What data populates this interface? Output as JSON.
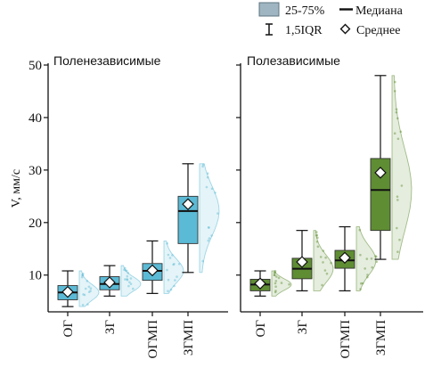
{
  "chart_data": {
    "type": "box",
    "ylabel": "V, мм/с",
    "ylim": [
      3,
      50
    ],
    "yticks": [
      10,
      20,
      30,
      40,
      50
    ],
    "categories": [
      "ОГ",
      "ЗГ",
      "ОГМП",
      "ЗГМП"
    ],
    "legend": {
      "box": "25-75%",
      "whisker": "1,5IQR",
      "median": "Медиана",
      "mean": "Среднее"
    },
    "colors": {
      "Поленезависимые": "#5bbad5",
      "Полезависимые": "#5f8d33"
    },
    "panels": [
      {
        "title": "Поленезависимые",
        "color": "#5bbad5",
        "groups": [
          {
            "category": "ОГ",
            "whisker_low": 4.0,
            "q1": 5.3,
            "median": 6.7,
            "q3": 8.0,
            "whisker_high": 10.8,
            "mean": 6.8
          },
          {
            "category": "ЗГ",
            "whisker_low": 6.0,
            "q1": 7.2,
            "median": 8.3,
            "q3": 9.7,
            "whisker_high": 11.8,
            "mean": 8.6
          },
          {
            "category": "ОГМП",
            "whisker_low": 6.5,
            "q1": 9.0,
            "median": 10.8,
            "q3": 12.2,
            "whisker_high": 16.5,
            "mean": 10.9
          },
          {
            "category": "ЗГМП",
            "whisker_low": 10.5,
            "q1": 16.0,
            "median": 22.2,
            "q3": 25.0,
            "whisker_high": 31.2,
            "mean": 23.5
          }
        ]
      },
      {
        "title": "Полезависимые",
        "color": "#5f8d33",
        "groups": [
          {
            "category": "ОГ",
            "whisker_low": 6.0,
            "q1": 7.0,
            "median": 8.2,
            "q3": 9.2,
            "whisker_high": 10.8,
            "mean": 8.4
          },
          {
            "category": "ЗГ",
            "whisker_low": 7.0,
            "q1": 9.3,
            "median": 11.2,
            "q3": 13.2,
            "whisker_high": 18.5,
            "mean": 12.5
          },
          {
            "category": "ОГМП",
            "whisker_low": 7.0,
            "q1": 11.3,
            "median": 12.8,
            "q3": 14.7,
            "whisker_high": 19.2,
            "mean": 13.3
          },
          {
            "category": "ЗГМП",
            "whisker_low": 13.0,
            "q1": 18.5,
            "median": 26.2,
            "q3": 32.2,
            "whisker_high": 48.0,
            "mean": 29.5
          }
        ]
      }
    ]
  }
}
